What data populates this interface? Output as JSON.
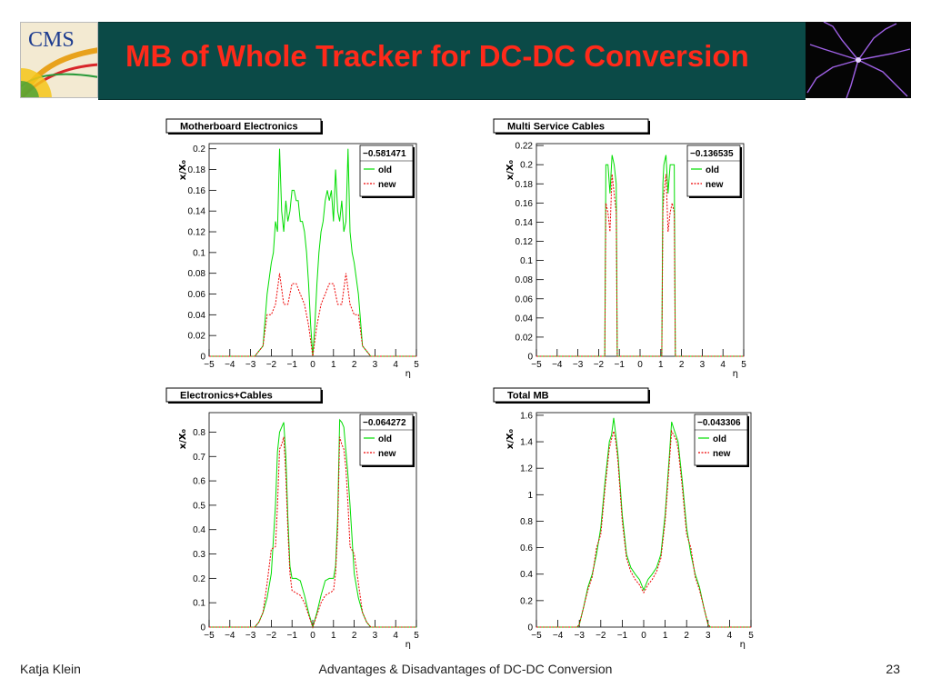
{
  "slide": {
    "title": "MB of Whole Tracker for DC-DC Conversion",
    "logo_text": "CMS",
    "footer_author": "Katja Klein",
    "footer_title": "Advantages & Disadvantages of DC-DC Conversion",
    "page_number": "23",
    "colors": {
      "title_band": "#0b4a47",
      "title_text": "#ff2a1a",
      "old_series": "#00dd00",
      "new_series": "#ee0000"
    }
  },
  "chart_data": [
    {
      "type": "line",
      "title": "Motherboard Electronics",
      "xlabel": "η",
      "ylabel": "x/X₀",
      "stat_value": "−0.581471",
      "xlim": [
        -5,
        5
      ],
      "ylim": [
        0,
        0.205
      ],
      "x_ticks": [
        -5,
        -4,
        -3,
        -2,
        -1,
        0,
        1,
        2,
        3,
        4,
        5
      ],
      "x_tick_labels": [
        "−5",
        "−4",
        "−3",
        "−2",
        "−1",
        "0",
        "1",
        "2",
        "3",
        "4",
        "5"
      ],
      "y_ticks": [
        0,
        0.02,
        0.04,
        0.06,
        0.08,
        0.1,
        0.12,
        0.14,
        0.16,
        0.18,
        0.2
      ],
      "y_tick_labels": [
        "0",
        "0.02",
        "0.04",
        "0.06",
        "0.08",
        "0.1",
        "0.12",
        "0.14",
        "0.16",
        "0.18",
        "0.2"
      ],
      "series": [
        {
          "name": "old",
          "color": "#00dd00",
          "dashed": false,
          "x": [
            -5,
            -2.8,
            -2.4,
            -2.2,
            -2.0,
            -1.9,
            -1.8,
            -1.7,
            -1.6,
            -1.5,
            -1.4,
            -1.3,
            -1.2,
            -1.1,
            -1.0,
            -0.9,
            -0.8,
            -0.7,
            -0.6,
            -0.5,
            -0.4,
            -0.3,
            -0.2,
            -0.1,
            0,
            0.1,
            0.2,
            0.3,
            0.4,
            0.5,
            0.6,
            0.7,
            0.8,
            0.9,
            1.0,
            1.1,
            1.2,
            1.3,
            1.4,
            1.5,
            1.6,
            1.7,
            1.8,
            1.9,
            2.0,
            2.2,
            2.4,
            2.8,
            5
          ],
          "y": [
            0,
            0,
            0.01,
            0.06,
            0.09,
            0.1,
            0.13,
            0.12,
            0.2,
            0.14,
            0.12,
            0.15,
            0.13,
            0.14,
            0.16,
            0.16,
            0.15,
            0.15,
            0.13,
            0.13,
            0.12,
            0.1,
            0.07,
            0.03,
            0.0,
            0.03,
            0.07,
            0.1,
            0.12,
            0.13,
            0.15,
            0.16,
            0.15,
            0.16,
            0.13,
            0.18,
            0.14,
            0.13,
            0.15,
            0.12,
            0.13,
            0.2,
            0.12,
            0.1,
            0.09,
            0.06,
            0.01,
            0,
            0
          ]
        },
        {
          "name": "new",
          "color": "#ee0000",
          "dashed": true,
          "x": [
            -5,
            -2.8,
            -2.4,
            -2.2,
            -2.0,
            -1.8,
            -1.6,
            -1.4,
            -1.2,
            -1.0,
            -0.8,
            -0.6,
            -0.4,
            -0.2,
            0,
            0.2,
            0.4,
            0.6,
            0.8,
            1.0,
            1.2,
            1.4,
            1.6,
            1.8,
            2.0,
            2.2,
            2.4,
            2.8,
            5
          ],
          "y": [
            0,
            0,
            0.01,
            0.04,
            0.04,
            0.05,
            0.08,
            0.05,
            0.05,
            0.07,
            0.07,
            0.06,
            0.05,
            0.03,
            0.0,
            0.03,
            0.05,
            0.06,
            0.07,
            0.07,
            0.05,
            0.05,
            0.08,
            0.05,
            0.04,
            0.04,
            0.01,
            0,
            0
          ]
        }
      ]
    },
    {
      "type": "line",
      "title": "Multi Service Cables",
      "xlabel": "η",
      "ylabel": "x/X₀",
      "stat_value": "−0.136535",
      "xlim": [
        -5,
        5
      ],
      "ylim": [
        0,
        0.222
      ],
      "x_ticks": [
        -5,
        -4,
        -3,
        -2,
        -1,
        0,
        1,
        2,
        3,
        4,
        5
      ],
      "x_tick_labels": [
        "−5",
        "−4",
        "−3",
        "−2",
        "−1",
        "0",
        "1",
        "2",
        "3",
        "4",
        "5"
      ],
      "y_ticks": [
        0,
        0.02,
        0.04,
        0.06,
        0.08,
        0.1,
        0.12,
        0.14,
        0.16,
        0.18,
        0.2,
        0.22
      ],
      "y_tick_labels": [
        "0",
        "0.02",
        "0.04",
        "0.06",
        "0.08",
        "0.1",
        "0.12",
        "0.14",
        "0.16",
        "0.18",
        "0.2",
        "0.22"
      ],
      "series": [
        {
          "name": "old",
          "color": "#00dd00",
          "dashed": false,
          "x": [
            -5,
            -1.7,
            -1.65,
            -1.55,
            -1.45,
            -1.35,
            -1.25,
            -1.15,
            -1.1,
            -1.05,
            -1.0,
            1.0,
            1.05,
            1.1,
            1.15,
            1.25,
            1.35,
            1.45,
            1.55,
            1.65,
            1.7,
            5
          ],
          "y": [
            0,
            0,
            0.2,
            0.2,
            0.17,
            0.21,
            0.2,
            0.18,
            0.0,
            0,
            0,
            0,
            0,
            0.18,
            0.2,
            0.21,
            0.17,
            0.2,
            0.2,
            0.2,
            0,
            0
          ]
        },
        {
          "name": "new",
          "color": "#ee0000",
          "dashed": true,
          "x": [
            -5,
            -1.7,
            -1.65,
            -1.55,
            -1.45,
            -1.35,
            -1.25,
            -1.15,
            -1.1,
            -1.05,
            -1.0,
            1.0,
            1.05,
            1.1,
            1.15,
            1.25,
            1.35,
            1.45,
            1.55,
            1.65,
            1.7,
            5
          ],
          "y": [
            0,
            0,
            0.16,
            0.15,
            0.13,
            0.19,
            0.17,
            0.15,
            0.0,
            0,
            0,
            0,
            0,
            0.15,
            0.17,
            0.19,
            0.13,
            0.15,
            0.16,
            0.15,
            0,
            0
          ]
        }
      ]
    },
    {
      "type": "line",
      "title": "Electronics+Cables",
      "xlabel": "η",
      "ylabel": "x/X₀",
      "stat_value": "−0.064272",
      "xlim": [
        -5,
        5
      ],
      "ylim": [
        0,
        0.88
      ],
      "x_ticks": [
        -5,
        -4,
        -3,
        -2,
        -1,
        0,
        1,
        2,
        3,
        4,
        5
      ],
      "x_tick_labels": [
        "−5",
        "−4",
        "−3",
        "−2",
        "−1",
        "0",
        "1",
        "2",
        "3",
        "4",
        "5"
      ],
      "y_ticks": [
        0,
        0.1,
        0.2,
        0.3,
        0.4,
        0.5,
        0.6,
        0.7,
        0.8
      ],
      "y_tick_labels": [
        "0",
        "0.1",
        "0.2",
        "0.3",
        "0.4",
        "0.5",
        "0.6",
        "0.7",
        "0.8"
      ],
      "series": [
        {
          "name": "old",
          "color": "#00dd00",
          "dashed": false,
          "x": [
            -5,
            -2.8,
            -2.6,
            -2.4,
            -2.2,
            -2.0,
            -1.8,
            -1.7,
            -1.6,
            -1.5,
            -1.4,
            -1.3,
            -1.2,
            -1.1,
            -1.0,
            -0.8,
            -0.6,
            -0.4,
            -0.2,
            0,
            0.2,
            0.4,
            0.6,
            0.8,
            1.0,
            1.1,
            1.2,
            1.3,
            1.4,
            1.5,
            1.6,
            1.7,
            1.8,
            2.0,
            2.2,
            2.4,
            2.6,
            2.8,
            5
          ],
          "y": [
            0,
            0,
            0.02,
            0.06,
            0.12,
            0.22,
            0.5,
            0.72,
            0.8,
            0.82,
            0.84,
            0.7,
            0.45,
            0.25,
            0.2,
            0.2,
            0.19,
            0.13,
            0.06,
            0.0,
            0.06,
            0.13,
            0.19,
            0.2,
            0.2,
            0.25,
            0.45,
            0.85,
            0.84,
            0.82,
            0.72,
            0.62,
            0.5,
            0.22,
            0.12,
            0.06,
            0.02,
            0,
            0
          ]
        },
        {
          "name": "new",
          "color": "#ee0000",
          "dashed": true,
          "x": [
            -5,
            -2.8,
            -2.6,
            -2.4,
            -2.2,
            -2.0,
            -1.8,
            -1.7,
            -1.6,
            -1.5,
            -1.4,
            -1.3,
            -1.2,
            -1.1,
            -1.0,
            -0.8,
            -0.6,
            -0.4,
            -0.2,
            0,
            0.2,
            0.4,
            0.6,
            0.8,
            1.0,
            1.1,
            1.2,
            1.3,
            1.4,
            1.5,
            1.6,
            1.7,
            1.8,
            2.0,
            2.2,
            2.4,
            2.6,
            2.8,
            5
          ],
          "y": [
            0,
            0,
            0.02,
            0.06,
            0.18,
            0.32,
            0.33,
            0.5,
            0.73,
            0.75,
            0.78,
            0.62,
            0.4,
            0.22,
            0.15,
            0.14,
            0.13,
            0.1,
            0.05,
            0.0,
            0.05,
            0.1,
            0.13,
            0.14,
            0.15,
            0.22,
            0.4,
            0.78,
            0.75,
            0.73,
            0.65,
            0.5,
            0.33,
            0.3,
            0.18,
            0.06,
            0.02,
            0,
            0
          ]
        }
      ]
    },
    {
      "type": "line",
      "title": "Total MB",
      "xlabel": "η",
      "ylabel": "x/X₀",
      "stat_value": "−0.043306",
      "xlim": [
        -5,
        5
      ],
      "ylim": [
        0,
        1.62
      ],
      "x_ticks": [
        -5,
        -4,
        -3,
        -2,
        -1,
        0,
        1,
        2,
        3,
        4,
        5
      ],
      "x_tick_labels": [
        "−5",
        "−4",
        "−3",
        "−2",
        "−1",
        "0",
        "1",
        "2",
        "3",
        "4",
        "5"
      ],
      "y_ticks": [
        0,
        0.2,
        0.4,
        0.6,
        0.8,
        1,
        1.2,
        1.4,
        1.6
      ],
      "y_tick_labels": [
        "0",
        "0.2",
        "0.4",
        "0.6",
        "0.8",
        "1",
        "1.2",
        "1.4",
        "1.6"
      ],
      "series": [
        {
          "name": "old",
          "color": "#00dd00",
          "dashed": false,
          "x": [
            -5,
            -3.1,
            -3.0,
            -2.8,
            -2.6,
            -2.4,
            -2.2,
            -2.0,
            -1.8,
            -1.6,
            -1.5,
            -1.4,
            -1.3,
            -1.2,
            -1.0,
            -0.8,
            -0.6,
            -0.4,
            -0.2,
            0,
            0.2,
            0.4,
            0.6,
            0.8,
            1.0,
            1.2,
            1.3,
            1.4,
            1.5,
            1.6,
            1.8,
            2.0,
            2.2,
            2.4,
            2.6,
            2.8,
            3.0,
            3.1,
            5
          ],
          "y": [
            0,
            0,
            0.02,
            0.15,
            0.3,
            0.4,
            0.55,
            0.75,
            1.1,
            1.4,
            1.45,
            1.58,
            1.45,
            1.3,
            0.85,
            0.55,
            0.45,
            0.4,
            0.36,
            0.28,
            0.36,
            0.4,
            0.45,
            0.55,
            0.85,
            1.3,
            1.55,
            1.5,
            1.45,
            1.4,
            1.1,
            0.75,
            0.55,
            0.4,
            0.3,
            0.15,
            0.02,
            0,
            0
          ]
        },
        {
          "name": "new",
          "color": "#ee0000",
          "dashed": true,
          "x": [
            -5,
            -3.1,
            -3.0,
            -2.8,
            -2.6,
            -2.4,
            -2.2,
            -2.0,
            -1.8,
            -1.6,
            -1.5,
            -1.4,
            -1.3,
            -1.2,
            -1.0,
            -0.8,
            -0.6,
            -0.4,
            -0.2,
            0,
            0.2,
            0.4,
            0.6,
            0.8,
            1.0,
            1.2,
            1.3,
            1.4,
            1.5,
            1.6,
            1.8,
            2.0,
            2.2,
            2.4,
            2.6,
            2.8,
            3.0,
            3.1,
            5
          ],
          "y": [
            0,
            0,
            0.02,
            0.15,
            0.28,
            0.38,
            0.6,
            0.7,
            1.05,
            1.35,
            1.42,
            1.48,
            1.4,
            1.25,
            0.8,
            0.52,
            0.42,
            0.36,
            0.32,
            0.26,
            0.32,
            0.36,
            0.42,
            0.52,
            0.8,
            1.25,
            1.48,
            1.45,
            1.42,
            1.35,
            1.05,
            0.7,
            0.6,
            0.38,
            0.28,
            0.15,
            0.02,
            0,
            0
          ]
        }
      ]
    }
  ]
}
